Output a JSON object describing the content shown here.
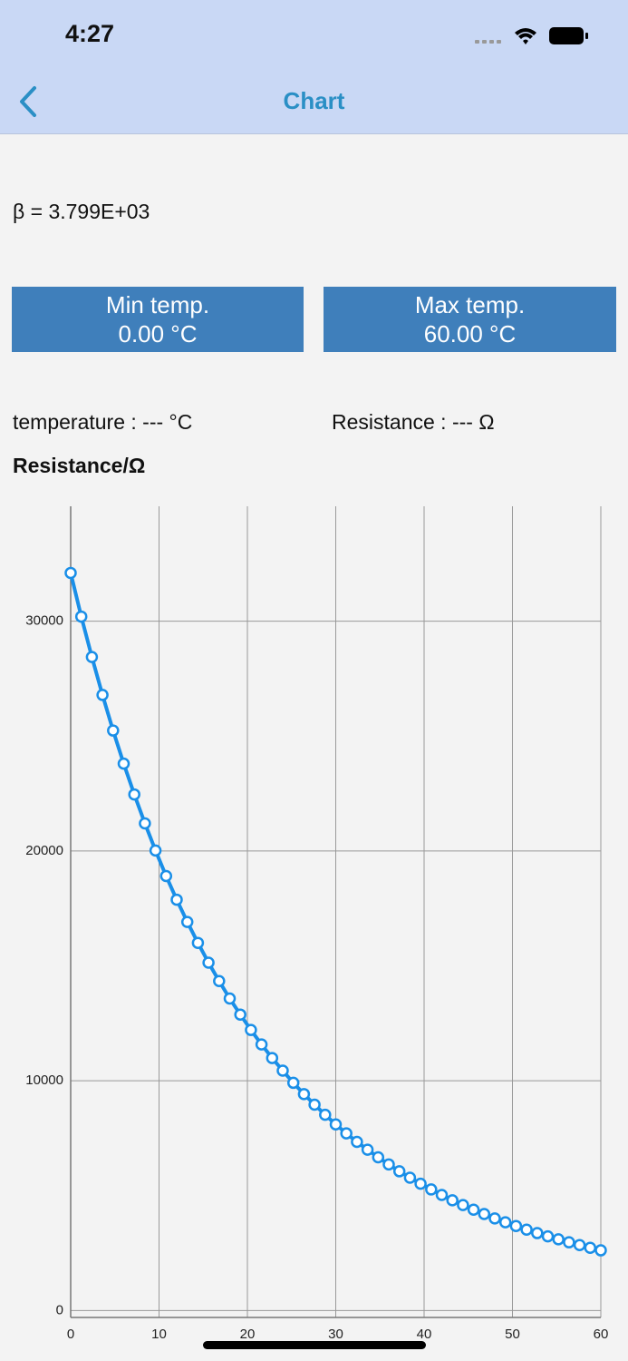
{
  "status_bar": {
    "time": "4:27"
  },
  "nav": {
    "title": "Chart"
  },
  "beta": "β = 3.799E+03",
  "min_button": {
    "label": "Min temp.",
    "value": "0.00 °C"
  },
  "max_button": {
    "label": "Max temp.",
    "value": "60.00 °C"
  },
  "readout": {
    "temperature": "temperature : --- °C",
    "resistance": "Resistance : --- Ω"
  },
  "chart_data": {
    "type": "line",
    "y_label": "Resistance/Ω",
    "color": "#1a8fe8",
    "x": [
      0,
      1.2,
      2.4,
      3.6,
      4.8,
      6,
      7.2,
      8.4,
      9.6,
      10.8,
      12,
      13.2,
      14.4,
      15.6,
      16.8,
      18,
      19.2,
      20.4,
      21.6,
      22.8,
      24,
      25.2,
      26.4,
      27.6,
      28.8,
      30,
      31.2,
      32.4,
      33.6,
      34.8,
      36,
      37.2,
      38.4,
      39.6,
      40.8,
      42,
      43.2,
      44.4,
      45.6,
      46.8,
      48,
      49.2,
      50.4,
      51.6,
      52.8,
      54,
      55.2,
      56.4,
      57.6,
      58.8,
      60
    ],
    "values": [
      32100,
      30200,
      28440,
      26790,
      25240,
      23800,
      22460,
      21200,
      20020,
      18910,
      17880,
      16910,
      16000,
      15140,
      14340,
      13580,
      12880,
      12210,
      11580,
      10990,
      10440,
      9910,
      9420,
      8960,
      8520,
      8100,
      7710,
      7340,
      7000,
      6670,
      6360,
      6060,
      5780,
      5520,
      5270,
      5030,
      4800,
      4590,
      4390,
      4200,
      4010,
      3840,
      3680,
      3520,
      3370,
      3230,
      3100,
      2970,
      2850,
      2730,
      2620
    ],
    "xlim": [
      0,
      60
    ],
    "ylim": [
      -300,
      35000
    ],
    "xticks": [
      0,
      10,
      20,
      30,
      40,
      50,
      60
    ],
    "yticks": [
      0,
      10000,
      20000,
      30000
    ],
    "grid": true
  }
}
